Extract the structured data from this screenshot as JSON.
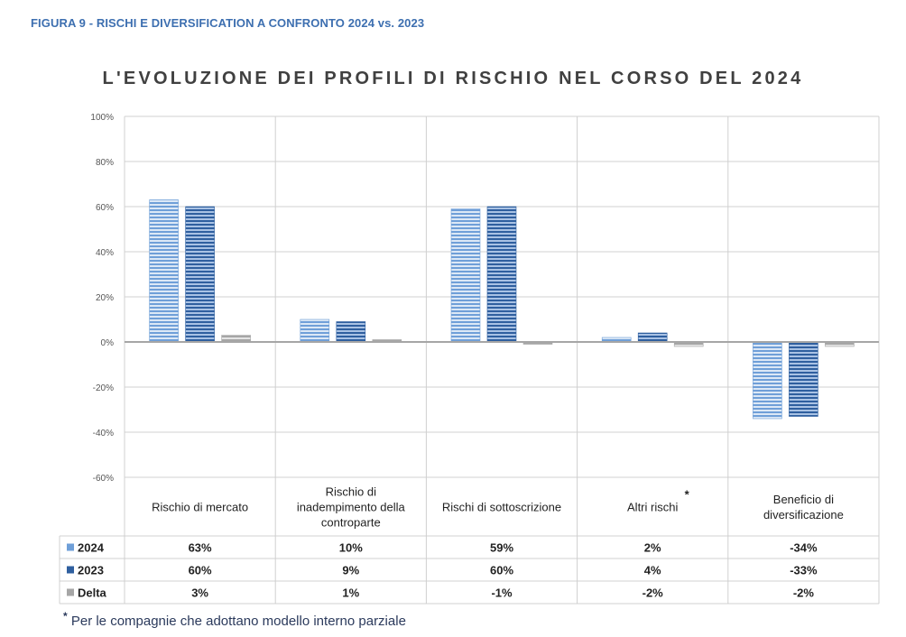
{
  "figure_label": "FIGURA 9 - RISCHI E DIVERSIFICATION A CONFRONTO 2024 vs. 2023",
  "footnote_marker": "*",
  "footnote": "Per le compagnie che adottano modello interno parziale",
  "colors": {
    "s2024": "#6f9fd8",
    "s2023": "#2f5f9f",
    "delta": "#a6a6a6",
    "grid": "#d0d0d0",
    "axis": "#a6a6a6"
  },
  "chart_data": {
    "type": "bar",
    "title": "L'EVOLUZIONE DEI PROFILI DI RISCHIO NEL CORSO DEL 2024",
    "categories": [
      [
        "Rischio di mercato"
      ],
      [
        "Rischio di",
        "inadempimento della",
        "controparte"
      ],
      [
        "Rischi di sottoscrizione"
      ],
      [
        "Altri rischi"
      ],
      [
        "Beneficio di",
        "diversificazione"
      ]
    ],
    "category_marker": {
      "index": 3,
      "text": "*"
    },
    "series": [
      {
        "name": "2024",
        "values": [
          63,
          10,
          59,
          2,
          -34
        ],
        "labels": [
          "63%",
          "10%",
          "59%",
          "2%",
          "-34%"
        ]
      },
      {
        "name": "2023",
        "values": [
          60,
          9,
          60,
          4,
          -33
        ],
        "labels": [
          "60%",
          "9%",
          "60%",
          "4%",
          "-33%"
        ]
      },
      {
        "name": "Delta",
        "values": [
          3,
          1,
          -1,
          -2,
          -2
        ],
        "labels": [
          "3%",
          "1%",
          "-1%",
          "-2%",
          "-2%"
        ]
      }
    ],
    "ylim": [
      -60,
      100
    ],
    "yticks": [
      100,
      80,
      60,
      40,
      20,
      0,
      -20,
      -40,
      -60
    ],
    "ytick_labels": [
      "100%",
      "80%",
      "60%",
      "40%",
      "20%",
      "0%",
      "-20%",
      "-40%",
      "-60%"
    ],
    "legend": "table-below",
    "xlabel": "",
    "ylabel": ""
  }
}
